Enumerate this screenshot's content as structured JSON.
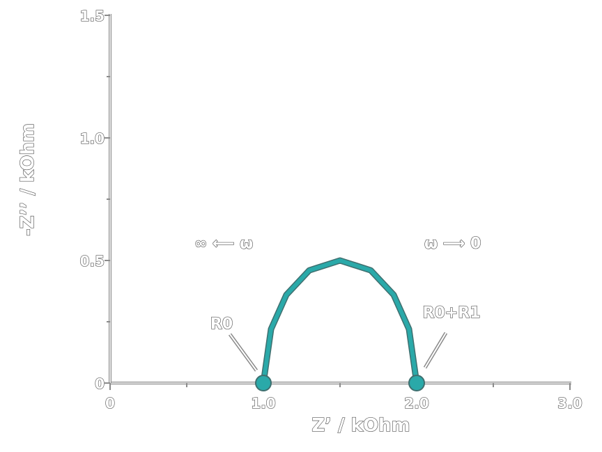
{
  "chart_data": {
    "type": "line",
    "title": "",
    "xlabel": "Z’ / kOhm",
    "ylabel": "-Z’’ / kOhm",
    "xlim": [
      0,
      3.0
    ],
    "ylim": [
      0,
      1.5
    ],
    "x_ticks": [
      {
        "value": 0,
        "label": "0"
      },
      {
        "value": 1.0,
        "label": "1.0"
      },
      {
        "value": 2.0,
        "label": "2.0"
      },
      {
        "value": 3.0,
        "label": "3.0"
      }
    ],
    "y_ticks": [
      {
        "value": 0,
        "label": "0"
      },
      {
        "value": 0.5,
        "label": "0.5"
      },
      {
        "value": 1.0,
        "label": "1.0"
      },
      {
        "value": 1.5,
        "label": "1.5"
      }
    ],
    "series": [
      {
        "x": [
          1.0,
          1.05,
          1.15,
          1.3,
          1.5,
          1.7,
          1.85,
          1.95,
          2.0
        ],
        "y": [
          0.0,
          0.22,
          0.36,
          0.46,
          0.5,
          0.46,
          0.36,
          0.22,
          0.0
        ],
        "color": "#2aa9a9"
      }
    ],
    "points": [
      {
        "x": 1.0,
        "y": 0.0,
        "label": "R0"
      },
      {
        "x": 2.0,
        "y": 0.0,
        "label": "R0+R1"
      }
    ],
    "annotations": [
      {
        "text": "∞ ⟵ ω",
        "x": 0.55,
        "y": 0.55
      },
      {
        "text": "ω ⟶ 0",
        "x": 2.05,
        "y": 0.55
      }
    ],
    "grid": false
  }
}
